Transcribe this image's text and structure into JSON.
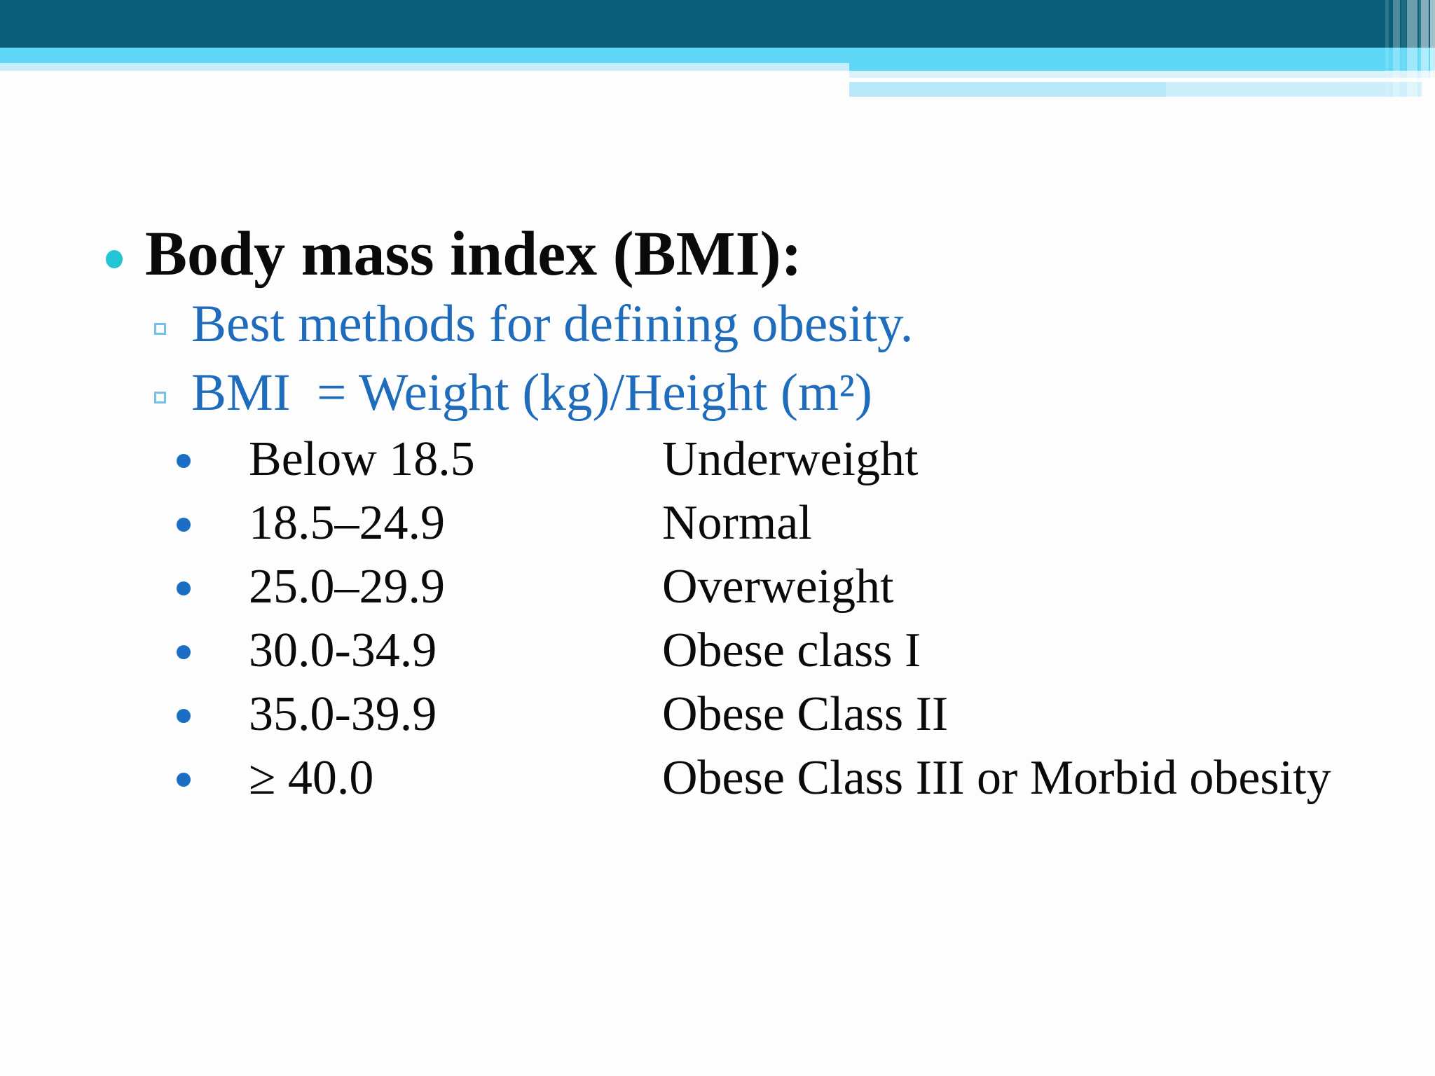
{
  "slide": {
    "title": "Body mass index (BMI):",
    "sub_bullets": [
      {
        "text": "Best methods for defining obesity."
      },
      {
        "text": "BMI  = Weight (kg)/Height (m²)"
      }
    ],
    "bmi_table": {
      "rows": [
        {
          "range": "Below 18.5",
          "category": "Underweight"
        },
        {
          "range": "18.5–24.9",
          "category": "Normal"
        },
        {
          "range": "25.0–29.9",
          "category": "Overweight"
        },
        {
          "range": "30.0-34.9",
          "category": "Obese class I"
        },
        {
          "range": "35.0-39.9",
          "category": "Obese Class II"
        },
        {
          "range": "≥ 40.0",
          "category": "Obese Class III or Morbid obesity"
        }
      ]
    },
    "colors": {
      "header_dark_teal": "#0b5e77",
      "header_sky_blue": "#5fd8f8",
      "header_pale_blue": "#c8eefc",
      "accent_teal_bullet": "#22c4d5",
      "sub_text_blue": "#1e6cbb",
      "row_bullet_blue": "#1a6fc4",
      "body_text_black": "#0a0a0c"
    }
  }
}
